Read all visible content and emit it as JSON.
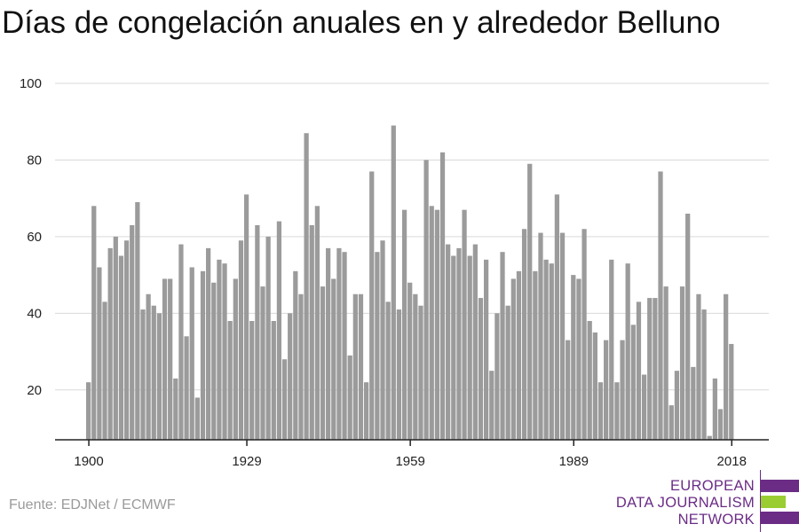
{
  "title": "Días de congelación anuales en y alrededor Belluno",
  "source": "Fuente: EDJNet / ECMWF",
  "logo": {
    "lines": [
      "EUROPEAN",
      "DATA JOURNALISM",
      "NETWORK"
    ],
    "color_purple": "#6b2c86",
    "color_green": "#9acd32"
  },
  "chart_data": {
    "type": "bar",
    "bar_color": "#9b9b9b",
    "grid": true,
    "ylim": [
      7,
      100
    ],
    "yticks": [
      20,
      40,
      60,
      80,
      100
    ],
    "xticks": [
      1900,
      1929,
      1959,
      1989,
      2018
    ],
    "x_start": 1900,
    "values": [
      22,
      68,
      52,
      43,
      57,
      60,
      55,
      59,
      63,
      69,
      41,
      45,
      42,
      40,
      49,
      49,
      23,
      58,
      34,
      52,
      18,
      51,
      57,
      48,
      54,
      53,
      38,
      49,
      59,
      71,
      38,
      63,
      47,
      60,
      38,
      64,
      28,
      40,
      51,
      45,
      87,
      63,
      68,
      47,
      57,
      49,
      57,
      56,
      29,
      45,
      45,
      22,
      77,
      56,
      59,
      43,
      89,
      41,
      67,
      48,
      45,
      42,
      80,
      68,
      67,
      82,
      58,
      55,
      57,
      67,
      55,
      58,
      44,
      54,
      25,
      40,
      56,
      42,
      49,
      51,
      62,
      79,
      51,
      61,
      54,
      53,
      71,
      61,
      33,
      50,
      49,
      62,
      38,
      35,
      22,
      33,
      54,
      22,
      33,
      53,
      37,
      43,
      24,
      44,
      44,
      77,
      47,
      16,
      25,
      47,
      66,
      26,
      45,
      41,
      8,
      23,
      15,
      45,
      32
    ]
  }
}
